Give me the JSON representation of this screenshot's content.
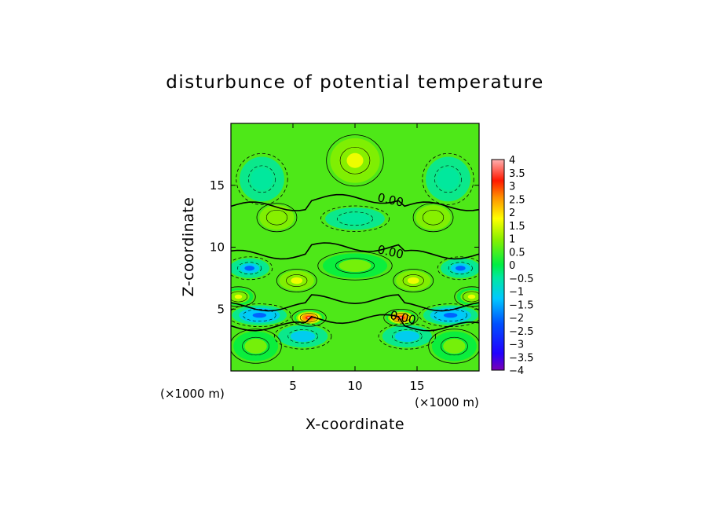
{
  "chart_data": {
    "type": "heatmap",
    "title": "disturbunce of potential temperature",
    "xlabel": "X-coordinate",
    "ylabel": "Z-coordinate",
    "x_unit": "(×1000 m)",
    "y_unit": "(×1000 m)",
    "xlim": [
      0,
      20
    ],
    "ylim": [
      0,
      20
    ],
    "x_ticks": [
      5,
      10,
      15
    ],
    "y_ticks": [
      5,
      10,
      15
    ],
    "colorbar": {
      "min": -4,
      "max": 4,
      "ticks": [
        "4",
        "3.5",
        "3",
        "2.5",
        "2",
        "1.5",
        "1",
        "0.5",
        "0",
        "−0.5",
        "−1",
        "−1.5",
        "−2",
        "−2.5",
        "−3",
        "−3.5",
        "−4"
      ]
    },
    "contour_labels": [
      {
        "text": "0.00",
        "x": 12.8,
        "z": 13.5
      },
      {
        "text": "0.00",
        "x": 12.8,
        "z": 9.3
      },
      {
        "text": "0.00",
        "x": 13.8,
        "z": 4.0
      }
    ],
    "features": [
      {
        "kind": "positive",
        "x": 10,
        "z": 17,
        "value": 1.6
      },
      {
        "kind": "negative",
        "x": 10,
        "z": 12.3,
        "value": -0.6
      },
      {
        "kind": "positive",
        "x": 10,
        "z": 8.5,
        "value": 0.9
      },
      {
        "kind": "positive",
        "x": 3.7,
        "z": 12.4,
        "value": 1.2
      },
      {
        "kind": "positive",
        "x": 16.3,
        "z": 12.4,
        "value": 1.2
      },
      {
        "kind": "positive",
        "x": 5.3,
        "z": 7.3,
        "value": 1.6
      },
      {
        "kind": "positive",
        "x": 14.7,
        "z": 7.3,
        "value": 1.6
      },
      {
        "kind": "positive",
        "x": 0.6,
        "z": 6.0,
        "value": 1.8
      },
      {
        "kind": "positive",
        "x": 19.4,
        "z": 6.0,
        "value": 1.8
      },
      {
        "kind": "positive",
        "x": 6.3,
        "z": 4.3,
        "value": 3.8
      },
      {
        "kind": "positive",
        "x": 13.7,
        "z": 4.3,
        "value": 3.8
      },
      {
        "kind": "negative",
        "x": 1.5,
        "z": 8.3,
        "value": -1.8
      },
      {
        "kind": "negative",
        "x": 18.5,
        "z": 8.3,
        "value": -1.8
      },
      {
        "kind": "negative",
        "x": 2.3,
        "z": 4.5,
        "value": -2.2
      },
      {
        "kind": "negative",
        "x": 17.7,
        "z": 4.5,
        "value": -2.2
      },
      {
        "kind": "negative",
        "x": 5.8,
        "z": 2.8,
        "value": -1.0
      },
      {
        "kind": "negative",
        "x": 14.2,
        "z": 2.8,
        "value": -1.0
      },
      {
        "kind": "negative",
        "x": 2.5,
        "z": 15.5,
        "value": -0.7
      },
      {
        "kind": "negative",
        "x": 17.5,
        "z": 15.5,
        "value": -0.7
      },
      {
        "kind": "positive",
        "x": 2.0,
        "z": 2.0,
        "value": 0.7
      },
      {
        "kind": "positive",
        "x": 18.0,
        "z": 2.0,
        "value": 0.7
      }
    ]
  }
}
